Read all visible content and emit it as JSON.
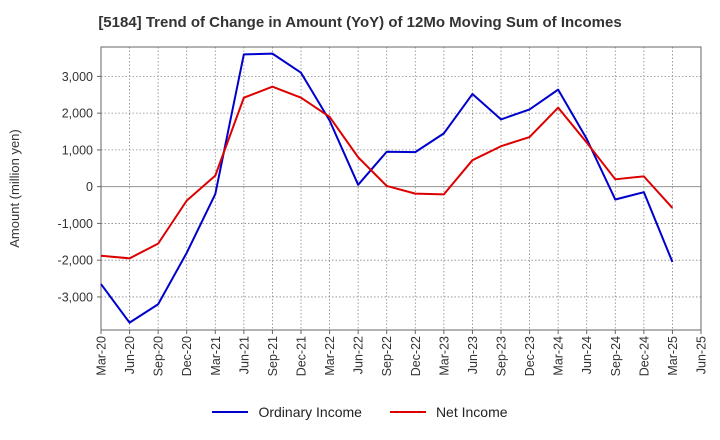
{
  "chart_data": {
    "type": "line",
    "title": "[5184]  Trend of Change in Amount (YoY) of 12Mo Moving Sum of Incomes",
    "ylabel": "Amount (million yen)",
    "xlabel": "",
    "ylim": [
      -3900,
      3800
    ],
    "yticks": [
      -3000,
      -2000,
      -1000,
      0,
      1000,
      2000,
      3000
    ],
    "ytick_labels": [
      "-3,000",
      "-2,000",
      "-1,000",
      "0",
      "1,000",
      "2,000",
      "3,000"
    ],
    "categories": [
      "Mar-20",
      "Jun-20",
      "Sep-20",
      "Dec-20",
      "Mar-21",
      "Jun-21",
      "Sep-21",
      "Dec-21",
      "Mar-22",
      "Jun-22",
      "Sep-22",
      "Dec-22",
      "Mar-23",
      "Jun-23",
      "Sep-23",
      "Dec-23",
      "Mar-24",
      "Jun-24",
      "Sep-24",
      "Dec-24",
      "Mar-25",
      "Jun-25"
    ],
    "grid": true,
    "legend_position": "bottom",
    "series": [
      {
        "name": "Ordinary Income",
        "color": "#0000cc",
        "values": [
          -2650,
          -3700,
          -3200,
          -1800,
          -200,
          3600,
          3620,
          3100,
          1800,
          50,
          950,
          940,
          1450,
          2520,
          1830,
          2100,
          2640,
          1300,
          -350,
          -150,
          -2050,
          null
        ]
      },
      {
        "name": "Net Income",
        "color": "#dd0000",
        "values": [
          -1880,
          -1950,
          -1550,
          -380,
          300,
          2420,
          2720,
          2420,
          1900,
          800,
          20,
          -190,
          -210,
          720,
          1100,
          1350,
          2150,
          1200,
          200,
          280,
          -580,
          null
        ]
      }
    ]
  }
}
